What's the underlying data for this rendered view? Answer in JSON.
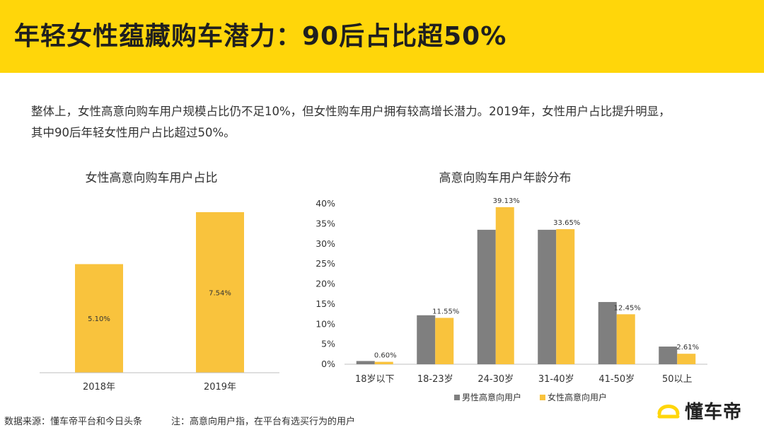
{
  "header": {
    "title": "年轻女性蕴藏购车潜力：90后占比超50%"
  },
  "intro": {
    "line1": "整体上，女性高意向购车用户规模占比仍不足10%，但女性购车用户拥有较高增长潜力。2019年，女性用户占比提升明显，",
    "line2": "其中90后年轻女性用户占比超过50%。"
  },
  "footer": {
    "source": "数据来源：懂车帝平台和今日头条",
    "note": "注：高意向用户指，在平台有选买行为的用户"
  },
  "brand": {
    "name": "懂车帝"
  },
  "colors": {
    "accent": "#FFD60A",
    "female": "#F9C33D",
    "male": "#7F7F7F"
  },
  "chart_data": [
    {
      "type": "bar",
      "title": "女性高意向购车用户占比",
      "categories": [
        "2018年",
        "2019年"
      ],
      "values": [
        5.1,
        7.54
      ],
      "value_labels": [
        "5.10%",
        "7.54%"
      ],
      "ylim": [
        0,
        8.4
      ],
      "grid": false
    },
    {
      "type": "bar",
      "title": "高意向购车用户年龄分布",
      "categories": [
        "18岁以下",
        "18-23岁",
        "24-30岁",
        "31-40岁",
        "41-50岁",
        "50以上"
      ],
      "series": [
        {
          "name": "男性高意向用户",
          "values": [
            0.8,
            12.2,
            33.5,
            33.5,
            15.5,
            4.4
          ]
        },
        {
          "name": "女性高意向用户",
          "values": [
            0.6,
            11.55,
            39.13,
            33.65,
            12.45,
            2.61
          ],
          "labels": [
            "0.60%",
            "11.55%",
            "39.13%",
            "33.65%",
            "12.45%",
            "2.61%"
          ]
        }
      ],
      "yticks": [
        "0%",
        "5%",
        "10%",
        "15%",
        "20%",
        "25%",
        "30%",
        "35%",
        "40%"
      ],
      "ylim": [
        0,
        40
      ],
      "legend": "bottom",
      "grid": false
    }
  ]
}
